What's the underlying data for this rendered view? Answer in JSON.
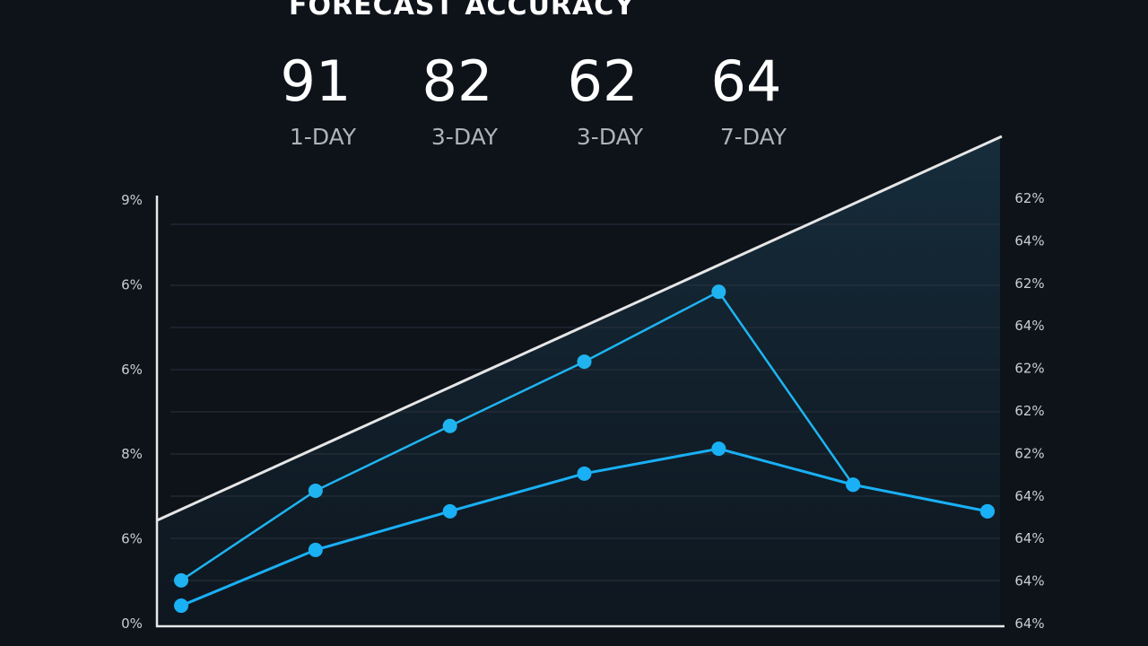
{
  "header": {
    "title": "FORECAST ACCURACY"
  },
  "stats": [
    {
      "value": "91",
      "label": "1-DAY"
    },
    {
      "value": "82",
      "label": "3-DAY"
    },
    {
      "value": "62",
      "label": "3-DAY"
    },
    {
      "value": "64",
      "label": "7-DAY"
    }
  ],
  "left_labels": [
    "9%",
    "6%",
    "6%",
    "8%",
    "6%",
    "0%"
  ],
  "right_labels": [
    "62%",
    "64%",
    "62%",
    "64%",
    "62%",
    "62%",
    "62%",
    "64%",
    "64%",
    "64%",
    "64%"
  ],
  "chart_data": {
    "type": "line",
    "categories": [
      null,
      null,
      null,
      null,
      null,
      null,
      null
    ],
    "ylim": [
      0,
      100
    ],
    "series": [
      {
        "color": "#1fb4f0",
        "values": [
          10.7,
          31.6,
          46.7,
          61.7,
          78,
          33,
          26.8
        ]
      },
      {
        "color": "#19b0f5",
        "values": [
          4.8,
          17.8,
          26.8,
          35.6,
          41.4,
          33,
          26.8
        ]
      }
    ]
  }
}
